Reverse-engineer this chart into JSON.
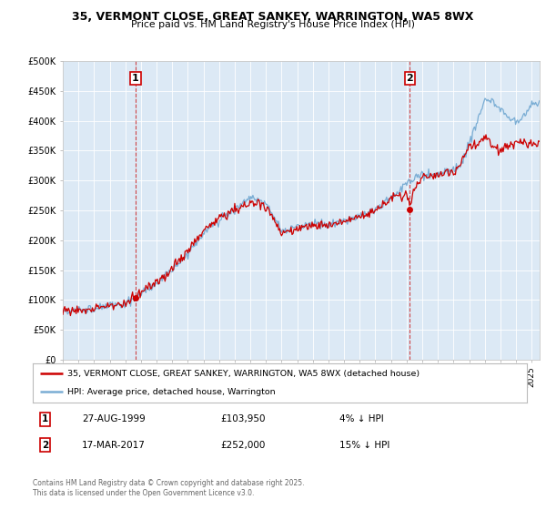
{
  "title1": "35, VERMONT CLOSE, GREAT SANKEY, WARRINGTON, WA5 8WX",
  "title2": "Price paid vs. HM Land Registry's House Price Index (HPI)",
  "legend_line1": "35, VERMONT CLOSE, GREAT SANKEY, WARRINGTON, WA5 8WX (detached house)",
  "legend_line2": "HPI: Average price, detached house, Warrington",
  "line_color_property": "#cc0000",
  "line_color_hpi": "#7aadd4",
  "marker_color_property": "#cc0000",
  "annotation1_date": "27-AUG-1999",
  "annotation1_price": "£103,950",
  "annotation1_hpi": "4% ↓ HPI",
  "annotation1_year": 1999.65,
  "annotation1_value": 103950,
  "annotation2_date": "17-MAR-2017",
  "annotation2_price": "£252,000",
  "annotation2_hpi": "15% ↓ HPI",
  "annotation2_year": 2017.21,
  "annotation2_value": 252000,
  "ylabel_ticks": [
    "£0",
    "£50K",
    "£100K",
    "£150K",
    "£200K",
    "£250K",
    "£300K",
    "£350K",
    "£400K",
    "£450K",
    "£500K"
  ],
  "ytick_values": [
    0,
    50000,
    100000,
    150000,
    200000,
    250000,
    300000,
    350000,
    400000,
    450000,
    500000
  ],
  "xmin": 1995.0,
  "xmax": 2025.5,
  "ymin": 0,
  "ymax": 500000,
  "background_color": "#dce9f5",
  "vline_color": "#cc3333",
  "footer": "Contains HM Land Registry data © Crown copyright and database right 2025.\nThis data is licensed under the Open Government Licence v3.0."
}
